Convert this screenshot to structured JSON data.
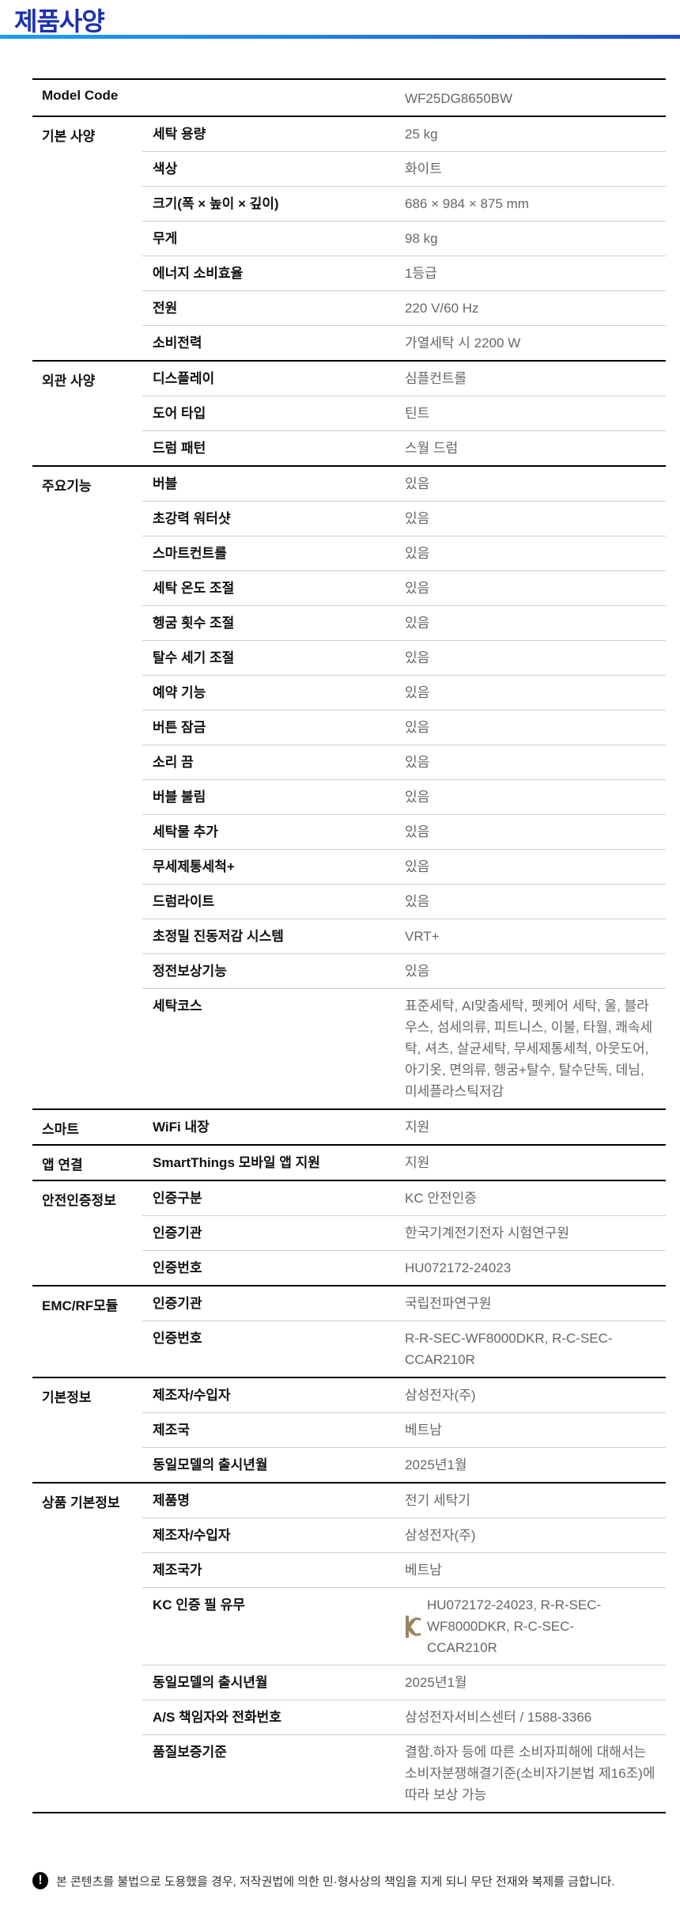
{
  "title": "제품사양",
  "model": {
    "label": "Model Code",
    "value": "WF25DG8650BW"
  },
  "groups": [
    {
      "name": "기본 사양",
      "rows": [
        {
          "label": "세탁 용량",
          "value": "25 kg"
        },
        {
          "label": "색상",
          "value": "화이트"
        },
        {
          "label": "크기(폭 × 높이 × 깊이)",
          "value": "686 × 984 × 875 mm"
        },
        {
          "label": "무게",
          "value": "98 kg"
        },
        {
          "label": "에너지 소비효율",
          "value": "1등급"
        },
        {
          "label": "전원",
          "value": "220 V/60 Hz"
        },
        {
          "label": "소비전력",
          "value": "가열세탁 시 2200 W"
        }
      ]
    },
    {
      "name": "외관 사양",
      "rows": [
        {
          "label": "디스플레이",
          "value": "심플컨트롤"
        },
        {
          "label": "도어 타입",
          "value": "틴트"
        },
        {
          "label": "드럼 패턴",
          "value": "스월 드럼"
        }
      ]
    },
    {
      "name": "주요기능",
      "rows": [
        {
          "label": "버블",
          "value": "있음"
        },
        {
          "label": "초강력 워터샷",
          "value": "있음"
        },
        {
          "label": "스마트컨트롤",
          "value": "있음"
        },
        {
          "label": "세탁 온도 조절",
          "value": "있음"
        },
        {
          "label": "헹굼 횟수 조절",
          "value": "있음"
        },
        {
          "label": "탈수 세기 조절",
          "value": "있음"
        },
        {
          "label": "예약 기능",
          "value": "있음"
        },
        {
          "label": "버튼 잠금",
          "value": "있음"
        },
        {
          "label": "소리 끔",
          "value": "있음"
        },
        {
          "label": "버블 불림",
          "value": "있음"
        },
        {
          "label": "세탁물 추가",
          "value": "있음"
        },
        {
          "label": "무세제통세척+",
          "value": "있음"
        },
        {
          "label": "드럼라이트",
          "value": "있음"
        },
        {
          "label": "초정밀 진동저감 시스템",
          "value": "VRT+"
        },
        {
          "label": "정전보상기능",
          "value": "있음"
        },
        {
          "label": "세탁코스",
          "value": "표준세탁, AI맞춤세탁, 펫케어 세탁, 울, 블라우스, 섬세의류, 피트니스, 이불, 타월, 쾌속세탁, 셔츠, 살균세탁, 무세제통세척, 아웃도어, 아기옷, 면의류, 헹굼+탈수, 탈수단독, 데님, 미세플라스틱저감"
        }
      ]
    },
    {
      "name": "스마트",
      "rows": [
        {
          "label": "WiFi 내장",
          "value": "지원"
        }
      ]
    },
    {
      "name": "앱 연결",
      "rows": [
        {
          "label": "SmartThings 모바일 앱 지원",
          "value": "지원"
        }
      ]
    },
    {
      "name": "안전인증정보",
      "rows": [
        {
          "label": "인증구분",
          "value": "KC 안전인증"
        },
        {
          "label": "인증기관",
          "value": "한국기계전기전자 시험연구원"
        },
        {
          "label": "인증번호",
          "value": "HU072172-24023"
        }
      ]
    },
    {
      "name": "EMC/RF모듈",
      "rows": [
        {
          "label": "인증기관",
          "value": "국립전파연구원"
        },
        {
          "label": "인증번호",
          "value": "R-R-SEC-WF8000DKR, R-C-SEC-CCAR210R"
        }
      ]
    },
    {
      "name": "기본정보",
      "rows": [
        {
          "label": "제조자/수입자",
          "value": "삼성전자(주)"
        },
        {
          "label": "제조국",
          "value": "베트남"
        },
        {
          "label": "동일모델의 출시년월",
          "value": "2025년1월"
        }
      ]
    },
    {
      "name": "상품 기본정보",
      "rows": [
        {
          "label": "제품명",
          "value": "전기 세탁기"
        },
        {
          "label": "제조자/수입자",
          "value": "삼성전자(주)"
        },
        {
          "label": "제조국가",
          "value": "베트남"
        },
        {
          "label": "KC 인증 필 유무",
          "value": "HU072172-24023, R-R-SEC-WF8000DKR, R-C-SEC-CCAR210R",
          "icon": "kc-mark-icon"
        },
        {
          "label": "동일모델의 출시년월",
          "value": "2025년1월"
        },
        {
          "label": "A/S 책임자와 전화번호",
          "value": "삼성전자서비스센터 / 1588-3366"
        },
        {
          "label": "품질보증기준",
          "value": "결함.하자 등에 따른 소비자피해에 대해서는 소비자분쟁해결기준(소비자기본법 제16조)에 따라 보상 가능"
        }
      ]
    }
  ],
  "notice": {
    "icon": "exclamation-icon",
    "text": "본 콘텐츠를 불법으로 도용했을 경우, 저작권법에 의한 민·형사상의 책임을 지게 되니 무단 전재와 복제를 금합니다."
  },
  "colors": {
    "title": "#1b2fae",
    "bar": "#1f78e6",
    "value": "#666666",
    "kc_mark": "#9a8461"
  }
}
